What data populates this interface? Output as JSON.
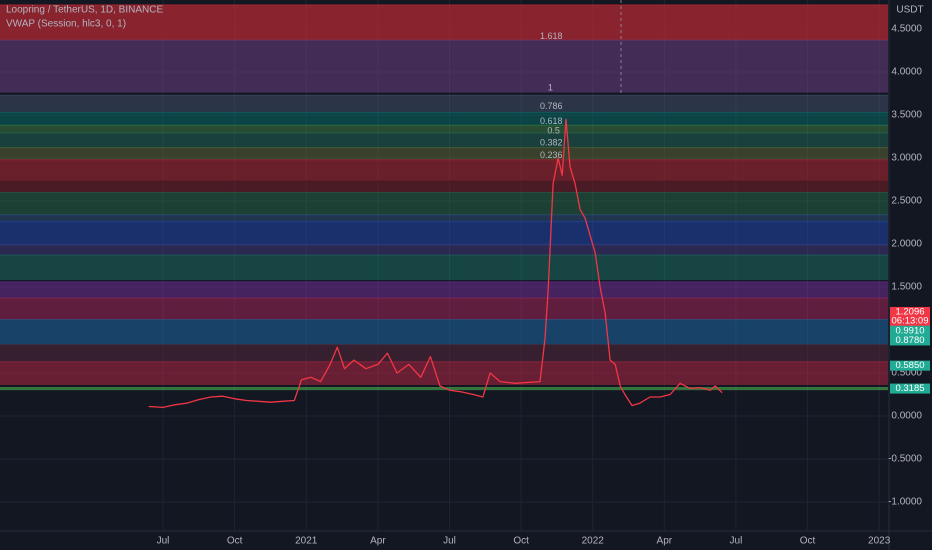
{
  "chart_data": {
    "type": "line",
    "subtitle": "VWAP (Session, hlc3, 0, 1)",
    "y_unit": "USDT",
    "xlim": [
      -6.83,
      30.37
    ],
    "ylim": [
      -1.326,
      4.837
    ],
    "xticks": [
      {
        "value": 0,
        "label": "Jul"
      },
      {
        "value": 3,
        "label": "Oct"
      },
      {
        "value": 6,
        "label": "2021"
      },
      {
        "value": 9,
        "label": "Apr"
      },
      {
        "value": 12,
        "label": "Jul"
      },
      {
        "value": 15,
        "label": "Oct"
      },
      {
        "value": 18,
        "label": "2022"
      },
      {
        "value": 21,
        "label": "Apr"
      },
      {
        "value": 24,
        "label": "Jul"
      },
      {
        "value": 27,
        "label": "Oct"
      },
      {
        "value": 30,
        "label": "2023"
      }
    ],
    "yticks": [
      {
        "value": 4.5,
        "label": "4.5000"
      },
      {
        "value": 4,
        "label": "4.0000"
      },
      {
        "value": 3.5,
        "label": "3.5000"
      },
      {
        "value": 3,
        "label": "3.0000"
      },
      {
        "value": 2.5,
        "label": "2.5000"
      },
      {
        "value": 2,
        "label": "2.0000"
      },
      {
        "value": 1.5,
        "label": "1.5000"
      },
      {
        "value": 0.5,
        "label": "0.5000"
      },
      {
        "value": 0,
        "label": "0.0000"
      },
      {
        "value": -0.5,
        "label": "-0.5000"
      },
      {
        "value": -1,
        "label": "-1.0000"
      }
    ],
    "grid": true,
    "series": [
      {
        "name": "Loopring / TetherUS, 1D, BINANCE",
        "color": "#f23645",
        "x": [
          -0.6,
          0,
          0.5,
          1,
          1.5,
          2,
          2.5,
          3,
          3.5,
          4,
          4.5,
          5,
          5.5,
          5.8,
          6.2,
          6.6,
          7,
          7.3,
          7.6,
          8,
          8.5,
          9,
          9.4,
          9.8,
          10.3,
          10.8,
          11.2,
          11.6,
          12,
          12.5,
          13,
          13.4,
          13.7,
          14.12,
          14.75,
          15.79,
          16.0,
          16.13,
          16.34,
          16.55,
          16.72,
          16.88,
          17.05,
          17.26,
          17.47,
          17.68,
          17.89,
          18.1,
          18.31,
          18.52,
          18.73,
          18.94,
          19.15,
          19.35,
          19.65,
          19.98,
          20.4,
          20.82,
          21.24,
          21.66,
          22.08,
          22.5,
          22.92,
          23.13,
          23.42
        ],
        "values": [
          0.11,
          0.1,
          0.13,
          0.15,
          0.19,
          0.22,
          0.23,
          0.2,
          0.18,
          0.17,
          0.16,
          0.17,
          0.18,
          0.42,
          0.45,
          0.4,
          0.6,
          0.8,
          0.55,
          0.65,
          0.55,
          0.6,
          0.73,
          0.5,
          0.6,
          0.45,
          0.69,
          0.35,
          0.3,
          0.28,
          0.25,
          0.22,
          0.5,
          0.4,
          0.38,
          0.4,
          0.9,
          1.45,
          2.7,
          3.0,
          2.8,
          3.45,
          2.9,
          2.7,
          2.4,
          2.3,
          2.1,
          1.9,
          1.5,
          1.2,
          0.65,
          0.6,
          0.35,
          0.25,
          0.12,
          0.15,
          0.22,
          0.22,
          0.25,
          0.38,
          0.32,
          0.33,
          0.3,
          0.35,
          0.27
        ]
      }
    ],
    "bands": [
      {
        "from": 4.37,
        "to": 4.78,
        "color": "rgba(178,40,51,0.75)"
      },
      {
        "from": 3.76,
        "to": 4.37,
        "color": "rgba(126,70,150,0.45)"
      },
      {
        "from": 3.53,
        "to": 3.73,
        "color": "rgba(90,110,140,0.35)"
      },
      {
        "from": 3.38,
        "to": 3.53,
        "color": "rgba(0,150,136,0.35)"
      },
      {
        "from": 3.29,
        "to": 3.38,
        "color": "rgba(76,175,80,0.35)"
      },
      {
        "from": 3.12,
        "to": 3.29,
        "color": "rgba(40,140,110,0.35)"
      },
      {
        "from": 2.98,
        "to": 3.12,
        "color": "rgba(130,140,60,0.35)"
      },
      {
        "from": 2.74,
        "to": 2.98,
        "color": "rgba(178,40,51,0.55)"
      },
      {
        "from": 2.6,
        "to": 2.74,
        "color": "rgba(120,30,40,0.55)"
      },
      {
        "from": 2.34,
        "to": 2.6,
        "color": "rgba(50,140,90,0.35)"
      },
      {
        "from": 2.26,
        "to": 2.34,
        "color": "rgba(60,110,170,0.35)"
      },
      {
        "from": 1.99,
        "to": 2.26,
        "color": "rgba(33,80,200,0.45)"
      },
      {
        "from": 1.87,
        "to": 1.99,
        "color": "rgba(80,70,150,0.4)"
      },
      {
        "from": 1.58,
        "to": 1.87,
        "color": "rgba(30,140,120,0.4)"
      },
      {
        "from": 1.37,
        "to": 1.56,
        "color": "rgba(130,50,170,0.45)"
      },
      {
        "from": 1.12,
        "to": 1.37,
        "color": "rgba(190,40,100,0.45)"
      },
      {
        "from": 0.83,
        "to": 1.12,
        "color": "rgba(30,120,190,0.45)"
      },
      {
        "from": 0.63,
        "to": 0.83,
        "color": "rgba(90,40,60,0.5)"
      },
      {
        "from": 0.36,
        "to": 0.63,
        "color": "rgba(190,40,70,0.5)"
      },
      {
        "from": 0.3,
        "to": 0.33,
        "color": "rgba(76,175,80,0.6)"
      }
    ],
    "annotations": [
      {
        "x": 15.79,
        "y": 4.41,
        "text": "1.618",
        "color": "#9c7bd8"
      },
      {
        "x": 16.12,
        "y": 3.81,
        "text": "1",
        "color": "#b2b5be"
      },
      {
        "x": 15.79,
        "y": 3.6,
        "text": "0.786",
        "color": "#64b5f6"
      },
      {
        "x": 15.79,
        "y": 3.42,
        "text": "0.618",
        "color": "#26c6da"
      },
      {
        "x": 16.1,
        "y": 3.31,
        "text": "0.5",
        "color": "#81c784"
      },
      {
        "x": 15.79,
        "y": 3.17,
        "text": "0.382",
        "color": "#e0e0e0"
      },
      {
        "x": 15.79,
        "y": 3.03,
        "text": "0.236",
        "color": "#ef5350"
      }
    ],
    "price_labels": [
      {
        "value": 1.2096,
        "label": "1.2096",
        "color": "#f23645"
      },
      {
        "value": 0.991,
        "label": "0.9910",
        "color": "#22ab94"
      },
      {
        "value": 0.878,
        "label": "0.8780",
        "color": "#22ab94"
      },
      {
        "value": 0.585,
        "label": "0.5850",
        "color": "#22ab94"
      },
      {
        "value": 0.3185,
        "label": "0.3185",
        "color": "#22ab94"
      }
    ],
    "countdown": "06:13:09"
  }
}
